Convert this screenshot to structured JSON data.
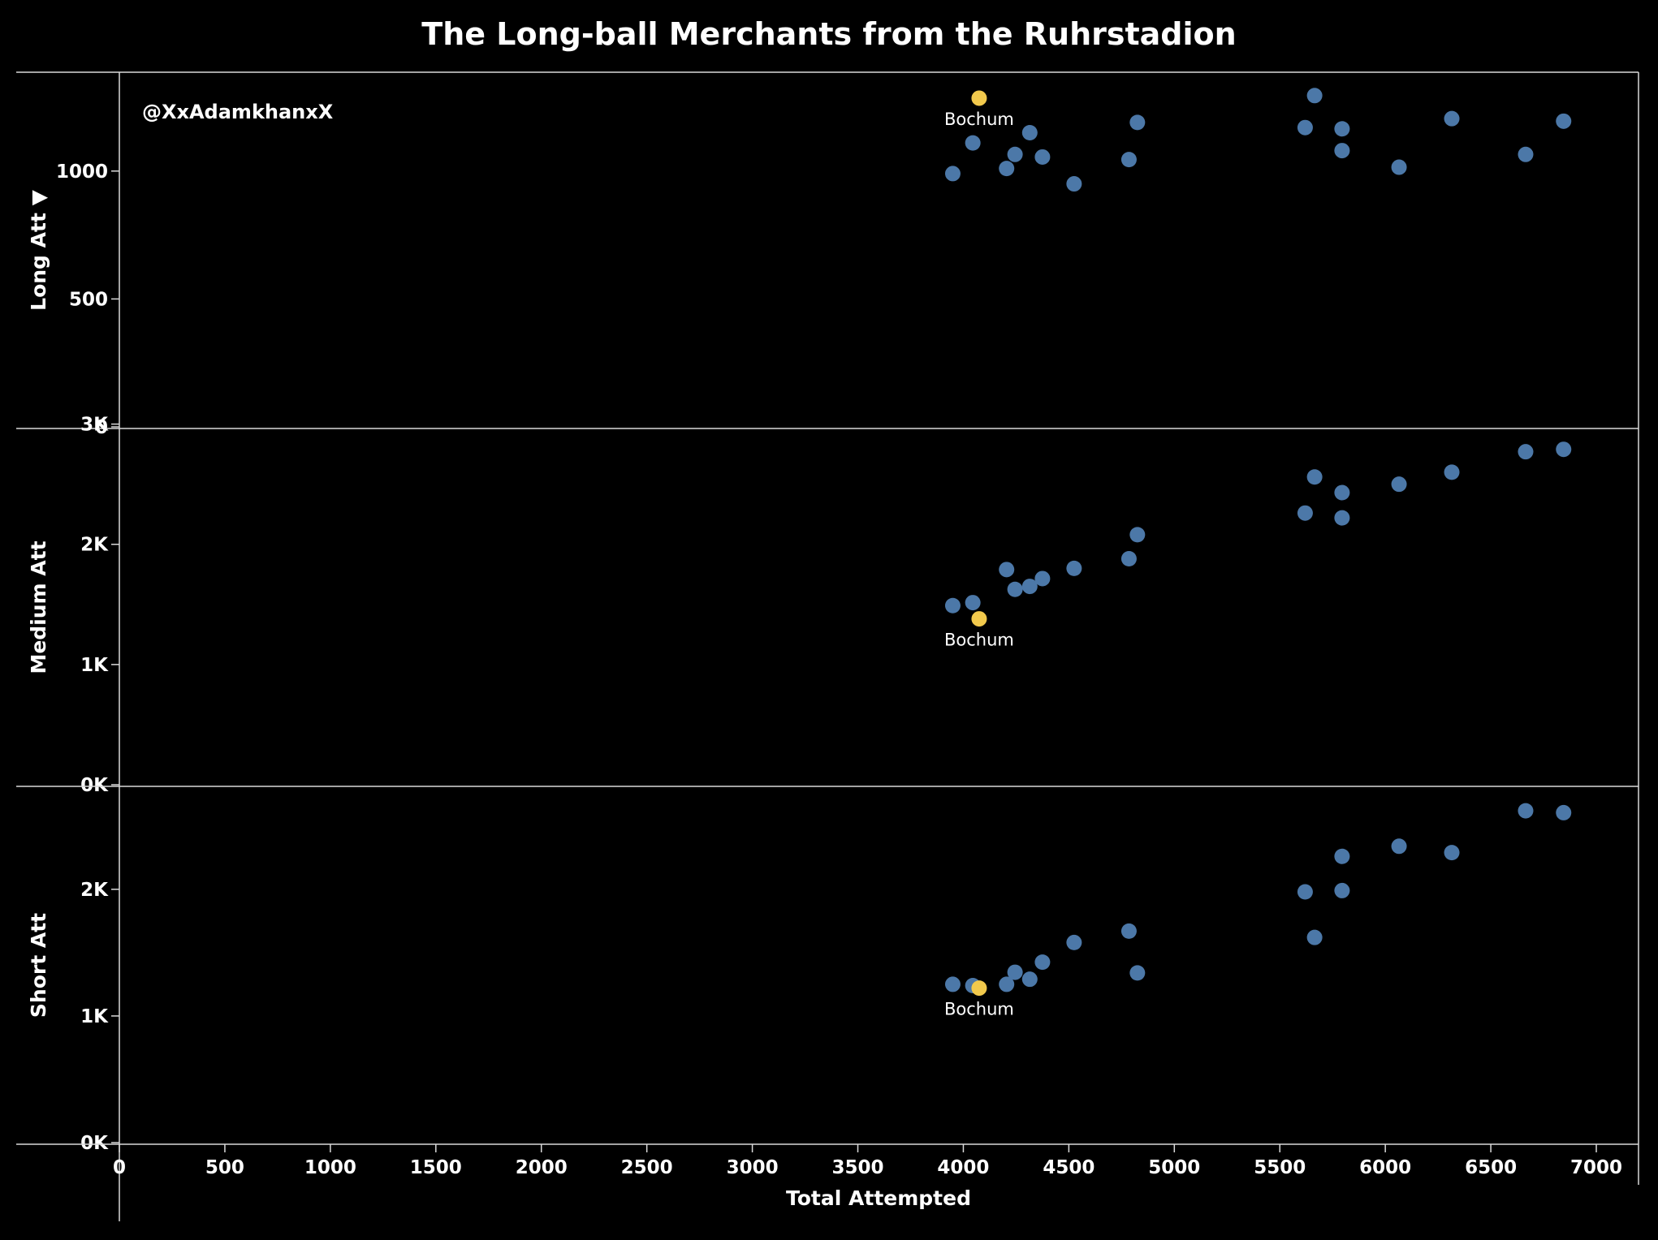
{
  "colors": {
    "background": "#000000",
    "team": "#4c78a8",
    "highlight": "#f2c94c",
    "line": "#d9d9d9",
    "text": "#ffffff"
  },
  "watermark": "@XxAdamkhanxX",
  "chart_data": {
    "type": "scatter",
    "title": "The Long-ball Merchants from the Ruhrstadion",
    "xlabel": "Total Attempted",
    "xlim": [
      0,
      7200
    ],
    "x_ticks": [
      "0",
      "500",
      "1000",
      "1500",
      "2000",
      "2500",
      "3000",
      "3500",
      "4000",
      "4500",
      "5000",
      "5500",
      "6000",
      "6500",
      "7000"
    ],
    "x_tick_values": [
      0,
      500,
      1000,
      1500,
      2000,
      2500,
      3000,
      3500,
      4000,
      4500,
      5000,
      5500,
      6000,
      6500,
      7000
    ],
    "highlight_label": "Bochum",
    "panels": [
      {
        "ylabel": "Long Att ▼",
        "ylim": [
          0,
          1380
        ],
        "y_ticks": [
          "0",
          "500",
          "1000"
        ],
        "y_tick_values": [
          0,
          500,
          1000
        ],
        "points": [
          {
            "x": 3950,
            "y": 990
          },
          {
            "x": 4045,
            "y": 1110
          },
          {
            "x": 4205,
            "y": 1010
          },
          {
            "x": 4245,
            "y": 1065
          },
          {
            "x": 4315,
            "y": 1150
          },
          {
            "x": 4375,
            "y": 1055
          },
          {
            "x": 4525,
            "y": 950
          },
          {
            "x": 4785,
            "y": 1045
          },
          {
            "x": 4825,
            "y": 1190
          },
          {
            "x": 5620,
            "y": 1170
          },
          {
            "x": 5665,
            "y": 1295
          },
          {
            "x": 5795,
            "y": 1165
          },
          {
            "x": 5795,
            "y": 1080
          },
          {
            "x": 6065,
            "y": 1015
          },
          {
            "x": 6315,
            "y": 1205
          },
          {
            "x": 6665,
            "y": 1065
          },
          {
            "x": 6845,
            "y": 1195
          }
        ],
        "highlight": {
          "x": 4075,
          "y": 1285
        }
      },
      {
        "ylabel": "Medium Att",
        "ylim": [
          0,
          2950
        ],
        "y_ticks": [
          "0K",
          "1K",
          "2K",
          "3K"
        ],
        "y_tick_values": [
          0,
          1000,
          2000,
          3000
        ],
        "points": [
          {
            "x": 3950,
            "y": 1490
          },
          {
            "x": 4045,
            "y": 1515
          },
          {
            "x": 4205,
            "y": 1790
          },
          {
            "x": 4245,
            "y": 1625
          },
          {
            "x": 4315,
            "y": 1650
          },
          {
            "x": 4375,
            "y": 1715
          },
          {
            "x": 4525,
            "y": 1800
          },
          {
            "x": 4785,
            "y": 1880
          },
          {
            "x": 4825,
            "y": 2080
          },
          {
            "x": 5620,
            "y": 2260
          },
          {
            "x": 5665,
            "y": 2560
          },
          {
            "x": 5795,
            "y": 2430
          },
          {
            "x": 5795,
            "y": 2220
          },
          {
            "x": 6065,
            "y": 2500
          },
          {
            "x": 6315,
            "y": 2600
          },
          {
            "x": 6665,
            "y": 2770
          },
          {
            "x": 6845,
            "y": 2790
          }
        ],
        "highlight": {
          "x": 4075,
          "y": 1380
        }
      },
      {
        "ylabel": "Short Att",
        "ylim": [
          0,
          2800
        ],
        "y_ticks": [
          "0K",
          "1K",
          "2K"
        ],
        "y_tick_values": [
          0,
          1000,
          2000
        ],
        "points": [
          {
            "x": 3950,
            "y": 1250
          },
          {
            "x": 4045,
            "y": 1240
          },
          {
            "x": 4205,
            "y": 1250
          },
          {
            "x": 4245,
            "y": 1345
          },
          {
            "x": 4315,
            "y": 1290
          },
          {
            "x": 4375,
            "y": 1425
          },
          {
            "x": 4525,
            "y": 1580
          },
          {
            "x": 4785,
            "y": 1670
          },
          {
            "x": 4825,
            "y": 1340
          },
          {
            "x": 5620,
            "y": 1980
          },
          {
            "x": 5665,
            "y": 1620
          },
          {
            "x": 5795,
            "y": 2260
          },
          {
            "x": 5795,
            "y": 1990
          },
          {
            "x": 6065,
            "y": 2340
          },
          {
            "x": 6315,
            "y": 2290
          },
          {
            "x": 6665,
            "y": 2620
          },
          {
            "x": 6845,
            "y": 2605
          }
        ],
        "highlight": {
          "x": 4075,
          "y": 1220
        }
      }
    ]
  }
}
